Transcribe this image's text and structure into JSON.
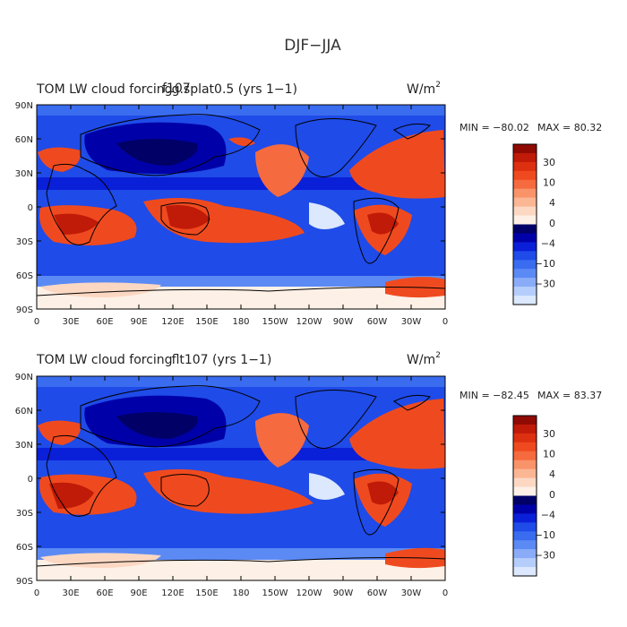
{
  "title": "DJF−JJA",
  "colors": {
    "negative": [
      "#000066",
      "#0000a8",
      "#0a1fd8",
      "#1f4be8",
      "#3a6cf0",
      "#5c8af4",
      "#8aacf8",
      "#b4cdfb",
      "#dbe8fd"
    ],
    "neutral": "#fdf0e6",
    "positive": [
      "#fcd8c3",
      "#fbb694",
      "#f9936a",
      "#f56a3e",
      "#ef4a1f",
      "#dd3010",
      "#c01a08",
      "#8f0a02"
    ],
    "background": "#ffffff"
  },
  "axes": {
    "y_ticks": [
      "90N",
      "60N",
      "30N",
      "0",
      "30S",
      "60S",
      "90S"
    ],
    "x_ticks": [
      "0",
      "30E",
      "60E",
      "90E",
      "120E",
      "150E",
      "180",
      "150W",
      "120W",
      "90W",
      "60W",
      "30W",
      "0"
    ]
  },
  "colorbar": {
    "labels": [
      "30",
      "10",
      "4",
      "0",
      "−4",
      "−10",
      "−30"
    ]
  },
  "panels": [
    {
      "title_left": "TOM LW cloud forcing",
      "title_overlap": "f107",
      "title_rest": "g.splat0.5 (yrs 1−1)",
      "units": "W/m",
      "units_exp": "2",
      "min_label": "MIN = −80.02",
      "max_label": "MAX =  80.32"
    },
    {
      "title_left": "TOM LW cloud forcing",
      "title_overlap": "",
      "title_rest": "flt107 (yrs 1−1)",
      "units": "W/m",
      "units_exp": "2",
      "min_label": "MIN = −82.45",
      "max_label": "MAX =  83.37"
    }
  ]
}
